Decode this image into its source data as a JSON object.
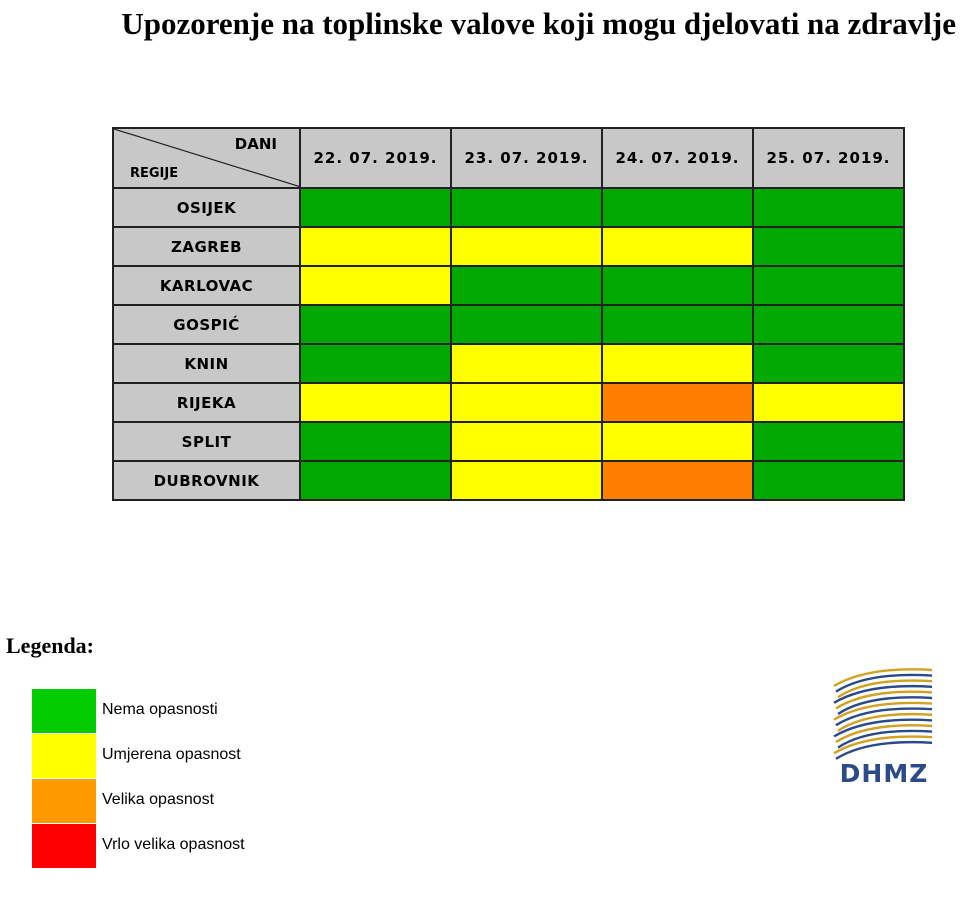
{
  "title": "Upozorenje na toplinske valove koji mogu djelovati na zdravlje",
  "table": {
    "corner_top": "DANI",
    "corner_bottom": "REGIJE",
    "dates": [
      "22. 07. 2019.",
      "23. 07. 2019.",
      "24. 07. 2019.",
      "25. 07. 2019."
    ],
    "rows": [
      {
        "region": "OSIJEK",
        "levels": [
          "green",
          "green",
          "green",
          "green"
        ]
      },
      {
        "region": "ZAGREB",
        "levels": [
          "yellow",
          "yellow",
          "yellow",
          "green"
        ]
      },
      {
        "region": "KARLOVAC",
        "levels": [
          "yellow",
          "green",
          "green",
          "green"
        ]
      },
      {
        "region": "GOSPIĆ",
        "levels": [
          "green",
          "green",
          "green",
          "green"
        ]
      },
      {
        "region": "KNIN",
        "levels": [
          "green",
          "yellow",
          "yellow",
          "green"
        ]
      },
      {
        "region": "RIJEKA",
        "levels": [
          "yellow",
          "yellow",
          "orange",
          "yellow"
        ]
      },
      {
        "region": "SPLIT",
        "levels": [
          "green",
          "yellow",
          "yellow",
          "green"
        ]
      },
      {
        "region": "DUBROVNIK",
        "levels": [
          "green",
          "yellow",
          "orange",
          "green"
        ]
      }
    ]
  },
  "level_colors": {
    "green": "#00a800",
    "yellow": "#ffff00",
    "orange": "#ff7f00",
    "red": "#ff0000"
  },
  "legend": {
    "title": "Legenda:",
    "items": [
      {
        "label": "Nema opasnosti",
        "color": "#00cc00"
      },
      {
        "label": "Umjerena opasnost",
        "color": "#ffff00"
      },
      {
        "label": "Velika opasnost",
        "color": "#ff9900"
      },
      {
        "label": "Vrlo velika opasnost",
        "color": "#ff0000"
      }
    ]
  },
  "logo": {
    "text": "DHMZ",
    "colors": {
      "blue": "#2a4a8a",
      "gold": "#d4a020"
    }
  }
}
